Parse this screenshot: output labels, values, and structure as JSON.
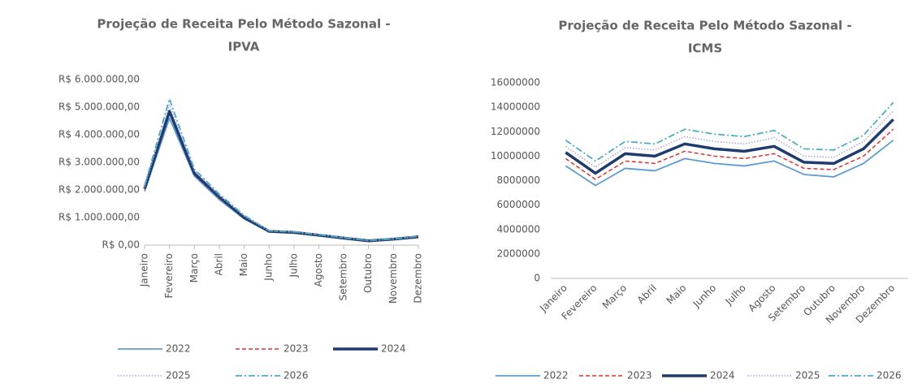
{
  "chart_data": [
    {
      "type": "line",
      "title": [
        "Projeção de Receita Pelo Método Sazonal -",
        "IPVA"
      ],
      "categories": [
        "Janeiro",
        "Fevereiro",
        "Março",
        "Abril",
        "Maio",
        "Junho",
        "Julho",
        "Agosto",
        "Setembro",
        "Outubro",
        "Novembro",
        "Dezembro"
      ],
      "ylim": [
        0,
        6000000
      ],
      "yticks": [
        {
          "value": 0,
          "label": "R$ 0,00"
        },
        {
          "value": 1000000,
          "label": "R$ 1.000.000,00"
        },
        {
          "value": 2000000,
          "label": "R$ 2.000.000,00"
        },
        {
          "value": 3000000,
          "label": "R$ 3.000.000,00"
        },
        {
          "value": 4000000,
          "label": "R$ 4.000.000,00"
        },
        {
          "value": 5000000,
          "label": "R$ 5.000.000,00"
        },
        {
          "value": 6000000,
          "label": "R$ 6.000.000,00"
        }
      ],
      "series": [
        {
          "name": "2022",
          "color": "#5b9bd5",
          "style": "solid",
          "values": [
            1950000,
            4600000,
            2500000,
            1650000,
            950000,
            480000,
            440000,
            340000,
            240000,
            140000,
            200000,
            280000
          ]
        },
        {
          "name": "2023",
          "color": "#e03030",
          "style": "dashed",
          "values": [
            2000000,
            4800000,
            2550000,
            1700000,
            980000,
            490000,
            450000,
            350000,
            250000,
            150000,
            210000,
            290000
          ]
        },
        {
          "name": "2024",
          "color": "#1f3a6e",
          "style": "bold",
          "values": [
            2050000,
            4850000,
            2600000,
            1750000,
            1000000,
            500000,
            460000,
            360000,
            255000,
            155000,
            215000,
            300000
          ]
        },
        {
          "name": "2025",
          "color": "#a9a4d8",
          "style": "dotted",
          "values": [
            2100000,
            5100000,
            2700000,
            1800000,
            1050000,
            510000,
            470000,
            370000,
            260000,
            160000,
            220000,
            310000
          ]
        },
        {
          "name": "2026",
          "color": "#4bacc6",
          "style": "dashdot",
          "values": [
            2150000,
            5300000,
            2750000,
            1850000,
            1080000,
            520000,
            480000,
            380000,
            270000,
            165000,
            225000,
            320000
          ]
        }
      ]
    },
    {
      "type": "line",
      "title": [
        "Projeção de Receita Pelo Método Sazonal -",
        "ICMS"
      ],
      "categories": [
        "Janeiro",
        "Fevereiro",
        "Março",
        "Abril",
        "Maio",
        "Junho",
        "Julho",
        "Agosto",
        "Setembro",
        "Outubro",
        "Novembro",
        "Dezembro"
      ],
      "ylim": [
        0,
        16000000
      ],
      "yticks": [
        0,
        2000000,
        4000000,
        6000000,
        8000000,
        10000000,
        12000000,
        14000000,
        16000000
      ],
      "series": [
        {
          "name": "2022",
          "color": "#5b9bd5",
          "style": "solid",
          "values": [
            9200000,
            7600000,
            9000000,
            8800000,
            9800000,
            9400000,
            9200000,
            9600000,
            8500000,
            8300000,
            9400000,
            11300000
          ]
        },
        {
          "name": "2023",
          "color": "#e03030",
          "style": "dashed",
          "values": [
            9800000,
            8100000,
            9600000,
            9400000,
            10400000,
            10000000,
            9800000,
            10200000,
            9000000,
            8900000,
            10000000,
            12200000
          ]
        },
        {
          "name": "2024",
          "color": "#1f3a6e",
          "style": "bold",
          "values": [
            10300000,
            8600000,
            10200000,
            10000000,
            11000000,
            10600000,
            10400000,
            10800000,
            9500000,
            9400000,
            10600000,
            13000000
          ]
        },
        {
          "name": "2025",
          "color": "#a9a4d8",
          "style": "dotted",
          "values": [
            10800000,
            9100000,
            10700000,
            10500000,
            11600000,
            11200000,
            11000000,
            11500000,
            10000000,
            9900000,
            11200000,
            13700000
          ]
        },
        {
          "name": "2026",
          "color": "#4bacc6",
          "style": "dashdot",
          "values": [
            11300000,
            9600000,
            11200000,
            11000000,
            12200000,
            11800000,
            11600000,
            12100000,
            10600000,
            10500000,
            11700000,
            14400000
          ]
        }
      ]
    }
  ]
}
